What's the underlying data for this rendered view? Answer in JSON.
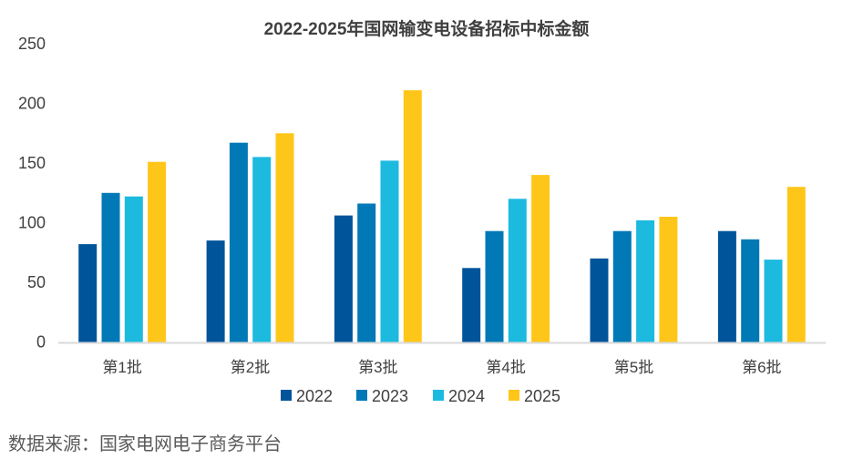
{
  "chart_data": {
    "type": "bar",
    "title": "2022-2025年国网输变电设备招标中标金额",
    "xlabel": "",
    "ylabel": "",
    "ylim": [
      0,
      250
    ],
    "yticks": [
      0,
      50,
      100,
      150,
      200,
      250
    ],
    "grid": false,
    "legend_position": "bottom",
    "categories": [
      "第1批",
      "第2批",
      "第3批",
      "第4批",
      "第5批",
      "第6批"
    ],
    "series": [
      {
        "name": "2022",
        "color": "#00549A",
        "values": [
          82,
          85,
          106,
          62,
          70,
          93
        ]
      },
      {
        "name": "2023",
        "color": "#0079B6",
        "values": [
          125,
          167,
          116,
          93,
          93,
          86
        ]
      },
      {
        "name": "2024",
        "color": "#1DBAE0",
        "values": [
          122,
          155,
          152,
          120,
          102,
          69
        ]
      },
      {
        "name": "2025",
        "color": "#FFC61A",
        "values": [
          151,
          175,
          211,
          140,
          105,
          130
        ]
      }
    ]
  },
  "source_note": "数据来源：国家电网电子商务平台"
}
